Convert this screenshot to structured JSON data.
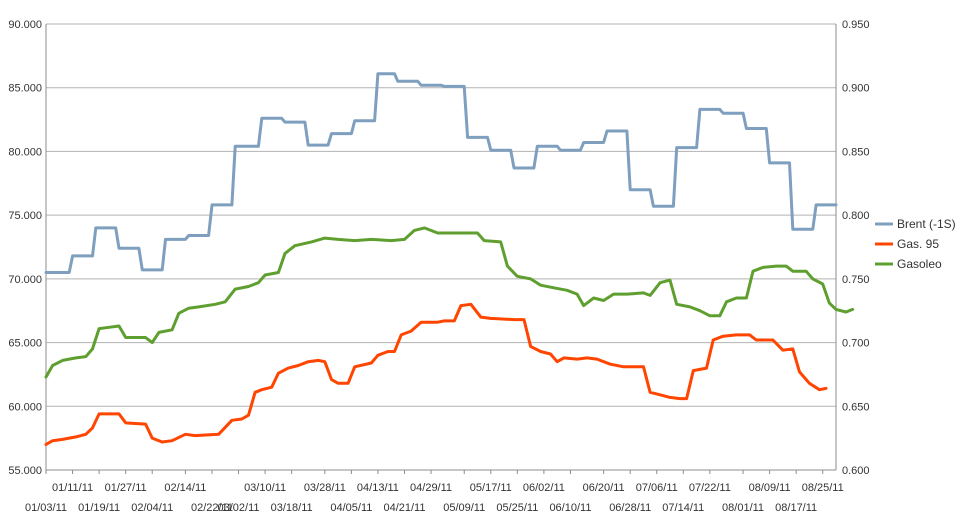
{
  "chart_data": {
    "type": "line",
    "title": "",
    "xlabel": "",
    "ylabel": "",
    "grid": "horizontal",
    "legend_position": "right",
    "x_range": [
      "01/03/11",
      "08/29/11"
    ],
    "ylim": [
      55,
      90
    ],
    "y2lim": [
      0.6,
      0.95
    ],
    "y_ticks": [
      "55.000",
      "60.000",
      "65.000",
      "70.000",
      "75.000",
      "80.000",
      "85.000",
      "90.000"
    ],
    "y2_ticks": [
      "0.600",
      "0.650",
      "0.700",
      "0.750",
      "0.800",
      "0.850",
      "0.900",
      "0.950"
    ],
    "x_ticks_upper": [
      "01/11/11",
      "01/27/11",
      "02/14/11",
      "03/10/11",
      "03/28/11",
      "04/13/11",
      "04/29/11",
      "05/17/11",
      "06/02/11",
      "06/20/11",
      "07/06/11",
      "07/22/11",
      "08/09/11",
      "08/25/11"
    ],
    "x_ticks_lower": [
      "01/03/11",
      "01/19/11",
      "02/04/11",
      "02/22/11",
      "03/02/11",
      "03/18/11",
      "04/05/11",
      "04/21/11",
      "05/09/11",
      "05/25/11",
      "06/10/11",
      "06/28/11",
      "07/14/11",
      "08/01/11",
      "08/17/11"
    ],
    "series": [
      {
        "name": "Brent (-1S)",
        "axis": "left",
        "color": "#7f9fbf",
        "points": [
          [
            "01/03/11",
            70.5
          ],
          [
            "01/10/11",
            70.5
          ],
          [
            "01/11/11",
            71.8
          ],
          [
            "01/17/11",
            71.8
          ],
          [
            "01/18/11",
            74.0
          ],
          [
            "01/24/11",
            74.0
          ],
          [
            "01/25/11",
            72.4
          ],
          [
            "01/31/11",
            72.4
          ],
          [
            "02/01/11",
            70.7
          ],
          [
            "02/07/11",
            70.7
          ],
          [
            "02/08/11",
            73.1
          ],
          [
            "02/14/11",
            73.1
          ],
          [
            "02/15/11",
            73.4
          ],
          [
            "02/21/11",
            73.4
          ],
          [
            "02/22/11",
            75.8
          ],
          [
            "02/28/11",
            75.8
          ],
          [
            "03/01/11",
            80.4
          ],
          [
            "03/08/11",
            80.4
          ],
          [
            "03/09/11",
            82.6
          ],
          [
            "03/15/11",
            82.6
          ],
          [
            "03/16/11",
            82.3
          ],
          [
            "03/22/11",
            82.3
          ],
          [
            "03/23/11",
            80.5
          ],
          [
            "03/29/11",
            80.5
          ],
          [
            "03/30/11",
            81.4
          ],
          [
            "04/05/11",
            81.4
          ],
          [
            "04/06/11",
            82.4
          ],
          [
            "04/12/11",
            82.4
          ],
          [
            "04/13/11",
            86.1
          ],
          [
            "04/18/11",
            86.1
          ],
          [
            "04/19/11",
            85.5
          ],
          [
            "04/25/11",
            85.5
          ],
          [
            "04/26/11",
            85.2
          ],
          [
            "05/02/11",
            85.2
          ],
          [
            "05/03/11",
            85.1
          ],
          [
            "05/09/11",
            85.1
          ],
          [
            "05/10/11",
            81.1
          ],
          [
            "05/16/11",
            81.1
          ],
          [
            "05/17/11",
            80.1
          ],
          [
            "05/23/11",
            80.1
          ],
          [
            "05/24/11",
            78.7
          ],
          [
            "05/30/11",
            78.7
          ],
          [
            "05/31/11",
            80.4
          ],
          [
            "06/06/11",
            80.4
          ],
          [
            "06/07/11",
            80.1
          ],
          [
            "06/13/11",
            80.1
          ],
          [
            "06/14/11",
            80.7
          ],
          [
            "06/20/11",
            80.7
          ],
          [
            "06/21/11",
            81.6
          ],
          [
            "06/27/11",
            81.6
          ],
          [
            "06/28/11",
            77.0
          ],
          [
            "07/04/11",
            77.0
          ],
          [
            "07/05/11",
            75.7
          ],
          [
            "07/11/11",
            75.7
          ],
          [
            "07/12/11",
            80.3
          ],
          [
            "07/18/11",
            80.3
          ],
          [
            "07/19/11",
            83.3
          ],
          [
            "07/25/11",
            83.3
          ],
          [
            "07/26/11",
            83.0
          ],
          [
            "08/01/11",
            83.0
          ],
          [
            "08/02/11",
            81.8
          ],
          [
            "08/08/11",
            81.8
          ],
          [
            "08/09/11",
            79.1
          ],
          [
            "08/15/11",
            79.1
          ],
          [
            "08/16/11",
            73.9
          ],
          [
            "08/22/11",
            73.9
          ],
          [
            "08/23/11",
            75.8
          ],
          [
            "08/29/11",
            75.8
          ]
        ]
      },
      {
        "name": "Gas. 95",
        "axis": "left",
        "color": "#ff4500",
        "points": [
          [
            "01/03/11",
            57.0
          ],
          [
            "01/05/11",
            57.3
          ],
          [
            "01/08/11",
            57.4
          ],
          [
            "01/12/11",
            57.6
          ],
          [
            "01/15/11",
            57.8
          ],
          [
            "01/17/11",
            58.3
          ],
          [
            "01/19/11",
            59.4
          ],
          [
            "01/25/11",
            59.4
          ],
          [
            "01/27/11",
            58.7
          ],
          [
            "02/02/11",
            58.6
          ],
          [
            "02/04/11",
            57.5
          ],
          [
            "02/07/11",
            57.2
          ],
          [
            "02/10/11",
            57.3
          ],
          [
            "02/14/11",
            57.8
          ],
          [
            "02/17/11",
            57.7
          ],
          [
            "02/24/11",
            57.8
          ],
          [
            "02/28/11",
            58.9
          ],
          [
            "03/03/11",
            59.0
          ],
          [
            "03/05/11",
            59.3
          ],
          [
            "03/07/11",
            61.1
          ],
          [
            "03/09/11",
            61.3
          ],
          [
            "03/12/11",
            61.5
          ],
          [
            "03/14/11",
            62.6
          ],
          [
            "03/17/11",
            63.0
          ],
          [
            "03/20/11",
            63.2
          ],
          [
            "03/23/11",
            63.5
          ],
          [
            "03/26/11",
            63.6
          ],
          [
            "03/28/11",
            63.5
          ],
          [
            "03/30/11",
            62.1
          ],
          [
            "04/01/11",
            61.8
          ],
          [
            "04/04/11",
            61.8
          ],
          [
            "04/06/11",
            63.1
          ],
          [
            "04/11/11",
            63.4
          ],
          [
            "04/13/11",
            64.0
          ],
          [
            "04/16/11",
            64.3
          ],
          [
            "04/18/11",
            64.3
          ],
          [
            "04/20/11",
            65.6
          ],
          [
            "04/23/11",
            65.9
          ],
          [
            "04/26/11",
            66.6
          ],
          [
            "05/01/11",
            66.6
          ],
          [
            "05/03/11",
            66.7
          ],
          [
            "05/06/11",
            66.7
          ],
          [
            "05/08/11",
            67.9
          ],
          [
            "05/11/11",
            68.0
          ],
          [
            "05/14/11",
            67.0
          ],
          [
            "05/17/11",
            66.9
          ],
          [
            "05/24/11",
            66.8
          ],
          [
            "05/27/11",
            66.8
          ],
          [
            "05/29/11",
            64.7
          ],
          [
            "06/01/11",
            64.3
          ],
          [
            "06/04/11",
            64.1
          ],
          [
            "06/06/11",
            63.5
          ],
          [
            "06/08/11",
            63.8
          ],
          [
            "06/12/11",
            63.7
          ],
          [
            "06/15/11",
            63.8
          ],
          [
            "06/18/11",
            63.7
          ],
          [
            "06/22/11",
            63.3
          ],
          [
            "06/26/11",
            63.1
          ],
          [
            "06/28/11",
            63.1
          ],
          [
            "07/02/11",
            63.1
          ],
          [
            "07/04/11",
            61.1
          ],
          [
            "07/07/11",
            60.9
          ],
          [
            "07/10/11",
            60.7
          ],
          [
            "07/13/11",
            60.6
          ],
          [
            "07/15/11",
            60.6
          ],
          [
            "07/17/11",
            62.8
          ],
          [
            "07/21/11",
            63.0
          ],
          [
            "07/23/11",
            65.2
          ],
          [
            "07/26/11",
            65.5
          ],
          [
            "07/30/11",
            65.6
          ],
          [
            "08/03/11",
            65.6
          ],
          [
            "08/05/11",
            65.2
          ],
          [
            "08/10/11",
            65.2
          ],
          [
            "08/13/11",
            64.4
          ],
          [
            "08/16/11",
            64.5
          ],
          [
            "08/18/11",
            62.7
          ],
          [
            "08/21/11",
            61.8
          ],
          [
            "08/24/11",
            61.3
          ],
          [
            "08/26/11",
            61.4
          ]
        ]
      },
      {
        "name": "Gasoleo",
        "axis": "left",
        "color": "#5f9f2f",
        "points": [
          [
            "01/03/11",
            62.3
          ],
          [
            "01/05/11",
            63.2
          ],
          [
            "01/08/11",
            63.6
          ],
          [
            "01/12/11",
            63.8
          ],
          [
            "01/15/11",
            63.9
          ],
          [
            "01/17/11",
            64.5
          ],
          [
            "01/19/11",
            66.1
          ],
          [
            "01/22/11",
            66.2
          ],
          [
            "01/25/11",
            66.3
          ],
          [
            "01/27/11",
            65.4
          ],
          [
            "02/02/11",
            65.4
          ],
          [
            "02/04/11",
            65.0
          ],
          [
            "02/06/11",
            65.8
          ],
          [
            "02/10/11",
            66.0
          ],
          [
            "02/12/11",
            67.3
          ],
          [
            "02/15/11",
            67.7
          ],
          [
            "02/18/11",
            67.8
          ],
          [
            "02/23/11",
            68.0
          ],
          [
            "02/26/11",
            68.2
          ],
          [
            "03/01/11",
            69.2
          ],
          [
            "03/05/11",
            69.4
          ],
          [
            "03/08/11",
            69.7
          ],
          [
            "03/10/11",
            70.3
          ],
          [
            "03/14/11",
            70.5
          ],
          [
            "03/16/11",
            72.0
          ],
          [
            "03/19/11",
            72.6
          ],
          [
            "03/24/11",
            72.9
          ],
          [
            "03/28/11",
            73.2
          ],
          [
            "04/01/11",
            73.1
          ],
          [
            "04/06/11",
            73.0
          ],
          [
            "04/11/11",
            73.1
          ],
          [
            "04/17/11",
            73.0
          ],
          [
            "04/21/11",
            73.1
          ],
          [
            "04/24/11",
            73.8
          ],
          [
            "04/27/11",
            74.0
          ],
          [
            "05/01/11",
            73.6
          ],
          [
            "05/06/11",
            73.6
          ],
          [
            "05/13/11",
            73.6
          ],
          [
            "05/15/11",
            73.0
          ],
          [
            "05/20/11",
            72.9
          ],
          [
            "05/22/11",
            71.0
          ],
          [
            "05/25/11",
            70.2
          ],
          [
            "05/29/11",
            70.0
          ],
          [
            "06/01/11",
            69.5
          ],
          [
            "06/05/11",
            69.3
          ],
          [
            "06/09/11",
            69.1
          ],
          [
            "06/12/11",
            68.8
          ],
          [
            "06/14/11",
            67.9
          ],
          [
            "06/17/11",
            68.5
          ],
          [
            "06/20/11",
            68.3
          ],
          [
            "06/23/11",
            68.8
          ],
          [
            "06/27/11",
            68.8
          ],
          [
            "07/02/11",
            68.9
          ],
          [
            "07/04/11",
            68.7
          ],
          [
            "07/07/11",
            69.7
          ],
          [
            "07/10/11",
            69.9
          ],
          [
            "07/12/11",
            68.0
          ],
          [
            "07/16/11",
            67.8
          ],
          [
            "07/19/11",
            67.5
          ],
          [
            "07/22/11",
            67.1
          ],
          [
            "07/25/11",
            67.1
          ],
          [
            "07/27/11",
            68.2
          ],
          [
            "07/30/11",
            68.5
          ],
          [
            "08/02/11",
            68.5
          ],
          [
            "08/04/11",
            70.6
          ],
          [
            "08/07/11",
            70.9
          ],
          [
            "08/11/11",
            71.0
          ],
          [
            "08/14/11",
            71.0
          ],
          [
            "08/16/11",
            70.6
          ],
          [
            "08/20/11",
            70.6
          ],
          [
            "08/22/11",
            70.0
          ],
          [
            "08/25/11",
            69.6
          ],
          [
            "08/27/11",
            68.1
          ],
          [
            "08/29/11",
            67.6
          ],
          [
            "09/01/11",
            67.4
          ],
          [
            "09/03/11",
            67.6
          ]
        ]
      }
    ]
  }
}
